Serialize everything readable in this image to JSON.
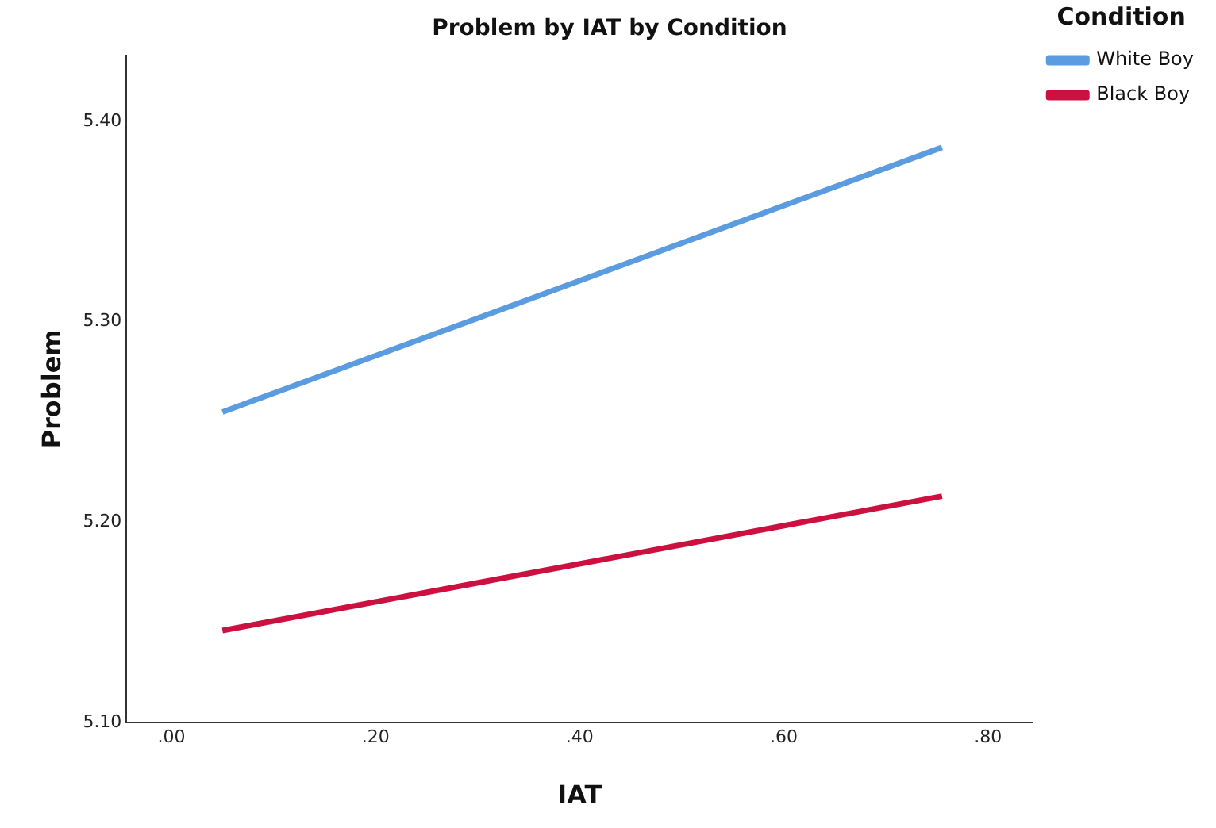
{
  "chart_data": {
    "type": "line",
    "title": "Problem by IAT by Condition",
    "xlabel": "IAT",
    "ylabel": "Problem",
    "legend_title": "Condition",
    "x": [
      0.05,
      0.755
    ],
    "series": [
      {
        "name": "White Boy",
        "color": "#5b9be0",
        "values": [
          5.255,
          5.387
        ]
      },
      {
        "name": "Black Boy",
        "color": "#cc1040",
        "values": [
          5.146,
          5.213
        ]
      }
    ],
    "xlim": [
      -0.044,
      0.844
    ],
    "xticks": [
      {
        "value": 0,
        "label": ".00"
      },
      {
        "value": 0.2,
        "label": ".20"
      },
      {
        "value": 0.4,
        "label": ".40"
      },
      {
        "value": 0.6,
        "label": ".60"
      },
      {
        "value": 0.8,
        "label": ".80"
      }
    ],
    "ylim": [
      5.1,
      5.433
    ],
    "yticks": [
      {
        "value": 5.1,
        "label": "5.10"
      },
      {
        "value": 5.2,
        "label": "5.20"
      },
      {
        "value": 5.3,
        "label": "5.30"
      },
      {
        "value": 5.4,
        "label": "5.40"
      }
    ],
    "grid": false,
    "legend": "top right",
    "marker": "none",
    "line_style": "solid"
  }
}
